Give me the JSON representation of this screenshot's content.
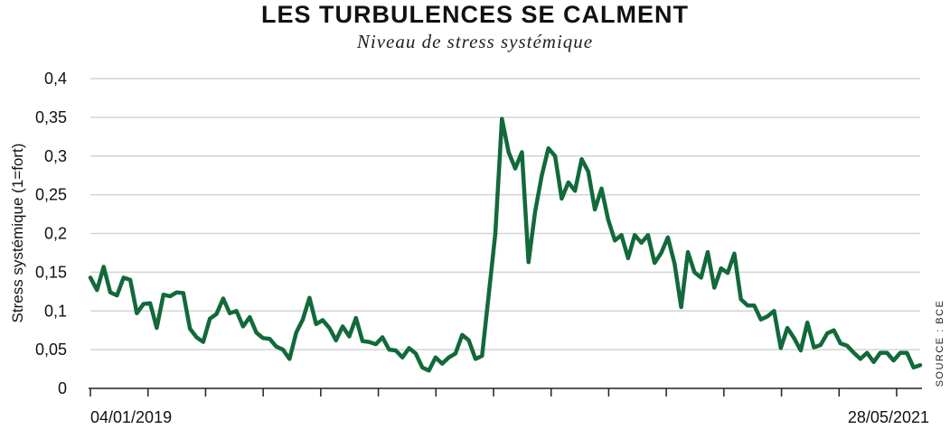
{
  "chart_data": {
    "type": "line",
    "title": "LES TURBULENCES SE CALMENT",
    "subtitle": "Niveau de stress systémique",
    "ylabel": "Stress systémique (1=fort)",
    "xlabel": "",
    "source": "SOURCE : BCE",
    "ylim": [
      0,
      0.4
    ],
    "yticks": [
      0,
      0.05,
      0.1,
      0.15,
      0.2,
      0.25,
      0.3,
      0.35,
      0.4
    ],
    "yticks_labels": [
      "0",
      "0,05",
      "0,1",
      "0,15",
      "0,2",
      "0,25",
      "0,3",
      "0,35",
      "0,4"
    ],
    "x_start_label": "04/01/2019",
    "x_end_label": "28/05/2021",
    "x_range": [
      "2019-01-04",
      "2021-05-28"
    ],
    "grid": true,
    "line_color": "#12693a",
    "series": [
      {
        "name": "",
        "x": [
          "2019-01-04",
          "2019-01-11",
          "2019-01-18",
          "2019-01-25",
          "2019-02-01",
          "2019-02-08",
          "2019-02-15",
          "2019-02-22",
          "2019-03-01",
          "2019-03-08",
          "2019-03-15",
          "2019-03-22",
          "2019-03-29",
          "2019-04-05",
          "2019-04-12",
          "2019-04-19",
          "2019-04-26",
          "2019-05-03",
          "2019-05-10",
          "2019-05-17",
          "2019-05-24",
          "2019-05-31",
          "2019-06-07",
          "2019-06-14",
          "2019-06-21",
          "2019-06-28",
          "2019-07-05",
          "2019-07-12",
          "2019-07-19",
          "2019-07-26",
          "2019-08-02",
          "2019-08-09",
          "2019-08-16",
          "2019-08-23",
          "2019-08-30",
          "2019-09-06",
          "2019-09-13",
          "2019-09-20",
          "2019-09-27",
          "2019-10-04",
          "2019-10-11",
          "2019-10-18",
          "2019-10-25",
          "2019-11-01",
          "2019-11-08",
          "2019-11-15",
          "2019-11-22",
          "2019-11-29",
          "2019-12-06",
          "2019-12-13",
          "2019-12-20",
          "2019-12-27",
          "2020-01-03",
          "2020-01-10",
          "2020-01-17",
          "2020-01-24",
          "2020-01-31",
          "2020-02-07",
          "2020-02-14",
          "2020-02-21",
          "2020-02-28",
          "2020-03-06",
          "2020-03-13",
          "2020-03-20",
          "2020-03-27",
          "2020-04-03",
          "2020-04-10",
          "2020-04-17",
          "2020-04-24",
          "2020-05-01",
          "2020-05-08",
          "2020-05-15",
          "2020-05-22",
          "2020-05-29",
          "2020-06-05",
          "2020-06-12",
          "2020-06-19",
          "2020-06-26",
          "2020-07-03",
          "2020-07-10",
          "2020-07-17",
          "2020-07-24",
          "2020-07-31",
          "2020-08-07",
          "2020-08-14",
          "2020-08-21",
          "2020-08-28",
          "2020-09-04",
          "2020-09-11",
          "2020-09-18",
          "2020-09-25",
          "2020-10-02",
          "2020-10-09",
          "2020-10-16",
          "2020-10-23",
          "2020-10-30",
          "2020-11-06",
          "2020-11-13",
          "2020-11-20",
          "2020-11-27",
          "2020-12-04",
          "2020-12-11",
          "2020-12-18",
          "2020-12-25",
          "2021-01-01",
          "2021-01-08",
          "2021-01-15",
          "2021-01-22",
          "2021-01-29",
          "2021-02-05",
          "2021-02-12",
          "2021-02-19",
          "2021-02-26",
          "2021-03-05",
          "2021-03-12",
          "2021-03-19",
          "2021-03-26",
          "2021-04-02",
          "2021-04-09",
          "2021-04-16",
          "2021-04-23",
          "2021-04-30",
          "2021-05-07",
          "2021-05-14",
          "2021-05-21",
          "2021-05-28"
        ],
        "values": [
          0.143,
          0.127,
          0.157,
          0.124,
          0.12,
          0.143,
          0.14,
          0.097,
          0.109,
          0.11,
          0.078,
          0.121,
          0.119,
          0.124,
          0.123,
          0.077,
          0.066,
          0.06,
          0.09,
          0.096,
          0.116,
          0.097,
          0.1,
          0.08,
          0.092,
          0.072,
          0.065,
          0.064,
          0.054,
          0.05,
          0.038,
          0.072,
          0.089,
          0.117,
          0.083,
          0.088,
          0.078,
          0.062,
          0.08,
          0.067,
          0.091,
          0.061,
          0.06,
          0.057,
          0.066,
          0.05,
          0.049,
          0.04,
          0.052,
          0.045,
          0.027,
          0.023,
          0.04,
          0.032,
          0.04,
          0.045,
          0.069,
          0.062,
          0.038,
          0.042,
          0.12,
          0.2,
          0.348,
          0.305,
          0.284,
          0.305,
          0.163,
          0.228,
          0.275,
          0.31,
          0.3,
          0.245,
          0.266,
          0.255,
          0.296,
          0.28,
          0.231,
          0.258,
          0.218,
          0.191,
          0.198,
          0.168,
          0.198,
          0.188,
          0.198,
          0.162,
          0.175,
          0.195,
          0.161,
          0.105,
          0.176,
          0.15,
          0.143,
          0.176,
          0.13,
          0.155,
          0.149,
          0.174,
          0.115,
          0.107,
          0.107,
          0.089,
          0.093,
          0.1,
          0.052,
          0.078,
          0.065,
          0.049,
          0.085,
          0.053,
          0.056,
          0.071,
          0.075,
          0.058,
          0.055,
          0.046,
          0.038,
          0.046,
          0.034,
          0.046,
          0.046,
          0.036,
          0.046,
          0.046,
          0.027,
          0.03
        ]
      }
    ]
  }
}
